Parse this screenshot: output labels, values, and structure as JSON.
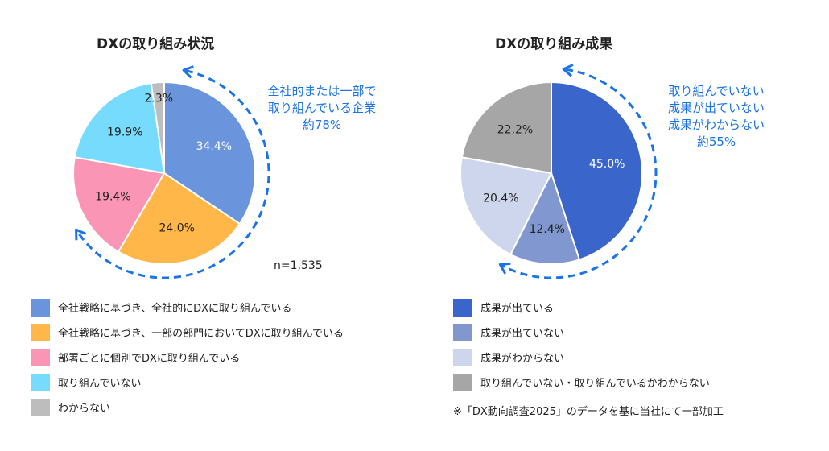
{
  "chart_data": [
    {
      "type": "pie",
      "title": "DXの取り組み状況",
      "slices": [
        {
          "label": "全社戦略に基づき、全社的にDXに取り組んでいる",
          "value": 34.4,
          "display": "34.4%",
          "color": "#6a95dc",
          "text_color": "#ffffff"
        },
        {
          "label": "全社戦略に基づき、一部の部門においてDXに取り組んでいる",
          "value": 24.0,
          "display": "24.0%",
          "color": "#ffb74a",
          "text_color": "#222222"
        },
        {
          "label": "部署ごとに個別でDXに取り組んでいる",
          "value": 19.4,
          "display": "19.4%",
          "color": "#fb95b5",
          "text_color": "#222222"
        },
        {
          "label": "取り組んでいない",
          "value": 19.9,
          "display": "19.9%",
          "color": "#76dbfc",
          "text_color": "#222222"
        },
        {
          "label": "わからない",
          "value": 2.3,
          "display": "2.3%",
          "color": "#bdbdbd",
          "text_color": "#222222"
        }
      ],
      "callout": [
        "全社的または一部で",
        "取り組んでいる企業",
        "約78%"
      ],
      "note": "n=1,535",
      "legend_position": "bottom"
    },
    {
      "type": "pie",
      "title": "DXの取り組み成果",
      "slices": [
        {
          "label": "成果が出ている",
          "value": 45.0,
          "display": "45.0%",
          "color": "#3a66cc",
          "text_color": "#ffffff"
        },
        {
          "label": "成果が出ていない",
          "value": 12.4,
          "display": "12.4%",
          "color": "#8097cf",
          "text_color": "#222222"
        },
        {
          "label": "成果がわからない",
          "value": 20.4,
          "display": "20.4%",
          "color": "#cdd6ec",
          "text_color": "#222222"
        },
        {
          "label": "取り組んでいない・取り組んでいるかわからない",
          "value": 22.2,
          "display": "22.2%",
          "color": "#a6a6a6",
          "text_color": "#222222"
        }
      ],
      "callout": [
        "取り組んでいない",
        "成果が出ていない",
        "成果がわからない",
        "約55%"
      ],
      "legend_position": "bottom"
    }
  ],
  "accent_color": "#1a73e8",
  "footnote": "※「DX動向調査2025」のデータを基に当社にて一部加工"
}
